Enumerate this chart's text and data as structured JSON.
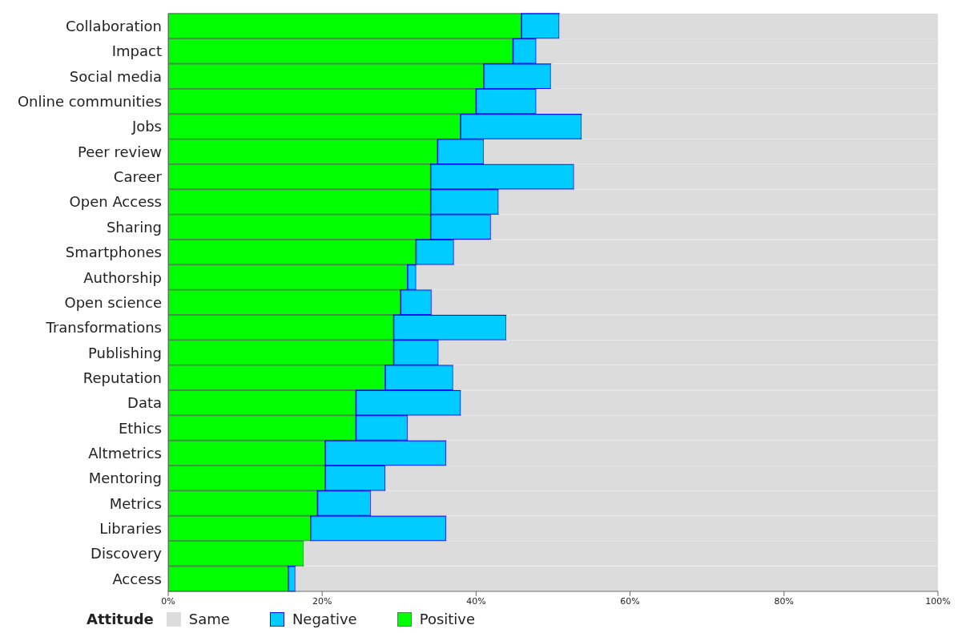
{
  "chart_data": {
    "type": "bar",
    "orientation": "horizontal",
    "stacked": true,
    "legend": "bottom",
    "legend_title": "Attitude",
    "categories": [
      "Collaboration",
      "Impact",
      "Social media",
      "Online communities",
      "Jobs",
      "Peer review",
      "Career",
      "Open Access",
      "Sharing",
      "Smartphones",
      "Authorship",
      "Open science",
      "Transformations",
      "Publishing",
      "Reputation",
      "Data",
      "Ethics",
      "Altmetrics",
      "Mentoring",
      "Metrics",
      "Libraries",
      "Discovery",
      "Access"
    ],
    "series": [
      {
        "name": "Positive",
        "color": "#00ff00",
        "values": [
          45.9,
          44.8,
          41.0,
          40.0,
          38.0,
          35.0,
          34.1,
          34.1,
          34.1,
          32.2,
          31.1,
          30.2,
          29.3,
          29.3,
          28.2,
          24.4,
          24.4,
          20.4,
          20.4,
          19.4,
          18.5,
          17.6,
          15.6
        ]
      },
      {
        "name": "Negative",
        "color": "#00ccff",
        "values": [
          4.9,
          3.0,
          8.7,
          7.8,
          15.7,
          6.0,
          18.6,
          8.8,
          7.8,
          4.9,
          1.1,
          4.0,
          14.6,
          5.8,
          8.8,
          13.6,
          6.7,
          15.7,
          7.8,
          6.9,
          17.6,
          0,
          0.9
        ]
      },
      {
        "name": "Same",
        "color": "#dcdcdc",
        "values": [
          49.2,
          52.2,
          50.3,
          52.2,
          46.3,
          59.0,
          47.3,
          57.1,
          58.1,
          62.9,
          67.8,
          65.8,
          56.1,
          64.9,
          63.0,
          62.0,
          68.9,
          63.9,
          71.8,
          73.7,
          63.9,
          82.4,
          83.5
        ]
      }
    ],
    "xlim": [
      0,
      100
    ],
    "xticks": [
      {
        "value": 0,
        "label": "0%"
      },
      {
        "value": 20,
        "label": "20%"
      },
      {
        "value": 40,
        "label": "40%"
      },
      {
        "value": 60,
        "label": "60%"
      },
      {
        "value": 80,
        "label": "80%"
      },
      {
        "value": 100,
        "label": "100%"
      }
    ]
  }
}
